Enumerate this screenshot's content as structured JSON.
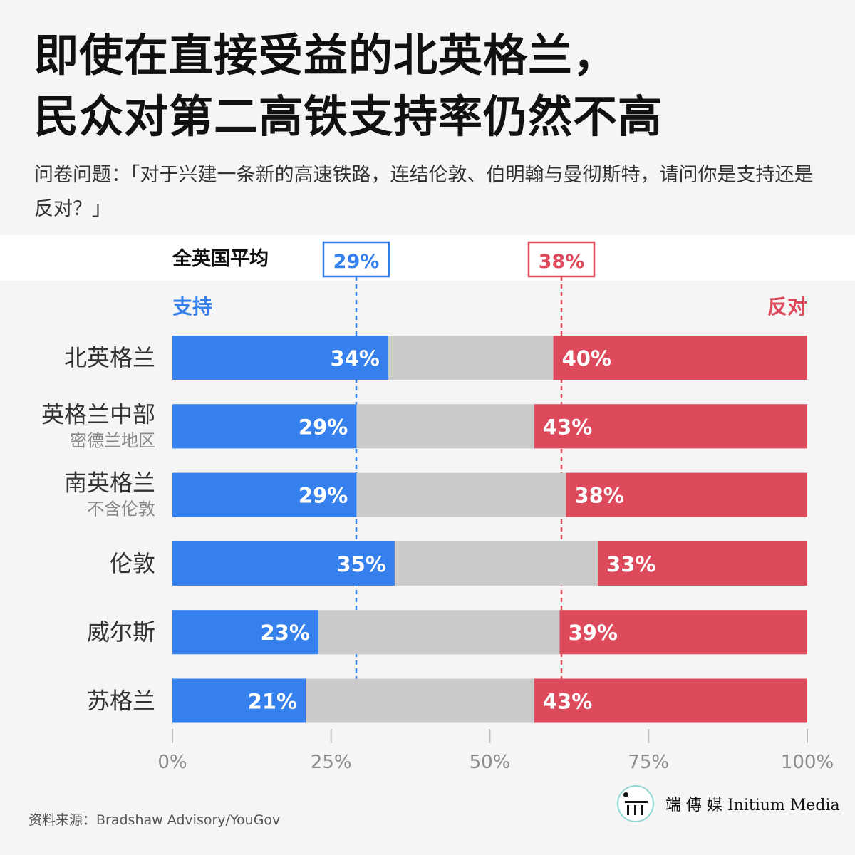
{
  "title": {
    "line1": "即使在直接受益的北英格兰，",
    "line2": "民众对第二高铁支持率仍然不高"
  },
  "subtitle": "问卷问题：「对于兴建一条新的高速铁路，连结伦敦、伯明翰与曼彻斯特，请问你是支持还是反对？」",
  "colors": {
    "support": "#3580ec",
    "oppose": "#dd4a5c",
    "neutral": "#cbcbcb",
    "axis": "#bdbdbd",
    "tick_text": "#8a8a8a"
  },
  "chart_data": {
    "type": "bar",
    "orientation": "horizontal",
    "stacked": true,
    "national_average": {
      "label": "全英国平均",
      "support": 29,
      "oppose": 38,
      "support_label": "29%",
      "oppose_label": "38%"
    },
    "support_label": "支持",
    "oppose_label": "反对",
    "categories": [
      {
        "name": "北英格兰",
        "sub": "",
        "support": 34,
        "oppose": 40
      },
      {
        "name": "英格兰中部",
        "sub": "密德兰地区",
        "support": 29,
        "oppose": 43
      },
      {
        "name": "南英格兰",
        "sub": "不含伦敦",
        "support": 29,
        "oppose": 38
      },
      {
        "name": "伦敦",
        "sub": "",
        "support": 35,
        "oppose": 33
      },
      {
        "name": "威尔斯",
        "sub": "",
        "support": 23,
        "oppose": 39
      },
      {
        "name": "苏格兰",
        "sub": "",
        "support": 21,
        "oppose": 43
      }
    ],
    "xlim": [
      0,
      100
    ],
    "xticks": [
      0,
      25,
      50,
      75,
      100
    ],
    "xtick_labels": [
      "0%",
      "25%",
      "50%",
      "75%",
      "100%"
    ],
    "grid": false
  },
  "source": "资料来源：Bradshaw Advisory/YouGov",
  "logo": {
    "icon": "initium-logo-icon",
    "text": "端 傳 媒  Initium Media"
  }
}
